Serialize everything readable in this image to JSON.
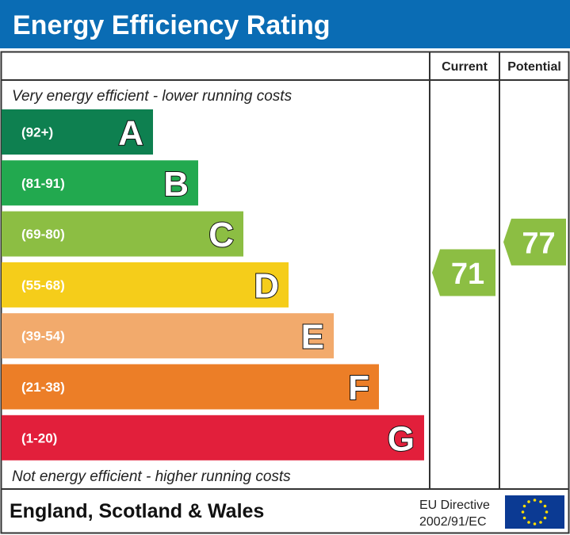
{
  "chart_data": {
    "type": "bar",
    "title": "Energy Efficiency Rating",
    "columns": [
      "Current",
      "Potential"
    ],
    "top_note": "Very energy efficient - lower running costs",
    "bottom_note": "Not energy efficient - higher running costs",
    "bands": [
      {
        "letter": "A",
        "range": "(92+)",
        "color": "#0e8050"
      },
      {
        "letter": "B",
        "range": "(81-91)",
        "color": "#22a94f"
      },
      {
        "letter": "C",
        "range": "(69-80)",
        "color": "#8cbe43"
      },
      {
        "letter": "D",
        "range": "(55-68)",
        "color": "#f5cd1a"
      },
      {
        "letter": "E",
        "range": "(39-54)",
        "color": "#f2aa6c"
      },
      {
        "letter": "F",
        "range": "(21-38)",
        "color": "#ec7e27"
      },
      {
        "letter": "G",
        "range": "(1-20)",
        "color": "#e21f3b"
      }
    ],
    "current": {
      "value": 71,
      "band": "C",
      "color": "#8cbe43"
    },
    "potential": {
      "value": 77,
      "band": "C",
      "color": "#8cbe43"
    }
  },
  "footer": {
    "region": "England, Scotland & Wales",
    "directive_line1": "EU Directive",
    "directive_line2": "2002/91/EC"
  },
  "colors": {
    "header": "#0a6cb4",
    "eu_flag": "#0b3a93",
    "eu_stars": "#ffdd00"
  }
}
